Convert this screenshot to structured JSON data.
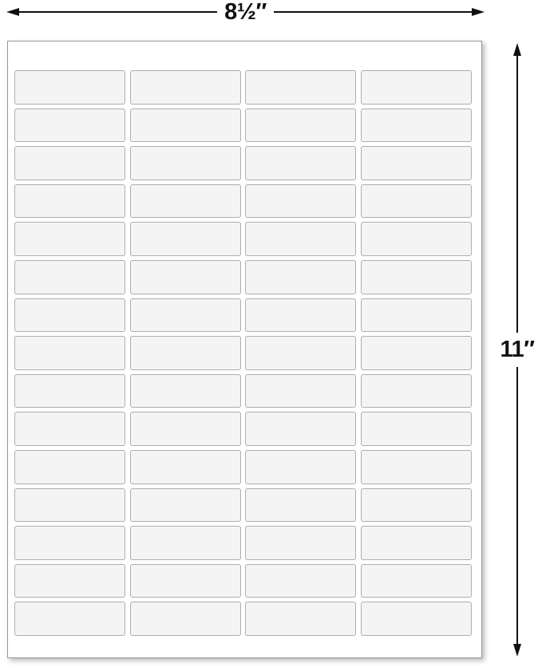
{
  "diagram": {
    "title": "blank label sheet with page dimensions",
    "width_label": "8½″",
    "height_label": "11″"
  },
  "sheet": {
    "rows": 15,
    "columns": 4,
    "total_labels": 60,
    "labels_blank": true
  },
  "colors": {
    "arrow": "#111111",
    "sheet_background": "#ffffff",
    "sheet_border": "#999999",
    "sheet_shadow": "rgba(0,0,0,0.28)",
    "label_fill": "#f4f4f4",
    "label_border": "#aeaeae"
  }
}
